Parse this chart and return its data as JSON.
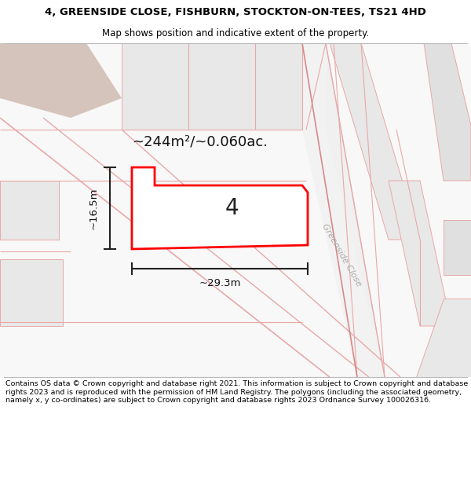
{
  "title_line1": "4, GREENSIDE CLOSE, FISHBURN, STOCKTON-ON-TEES, TS21 4HD",
  "title_line2": "Map shows position and indicative extent of the property.",
  "footer_text": "Contains OS data © Crown copyright and database right 2021. This information is subject to Crown copyright and database rights 2023 and is reproduced with the permission of HM Land Registry. The polygons (including the associated geometry, namely x, y co-ordinates) are subject to Crown copyright and database rights 2023 Ordnance Survey 100026316.",
  "area_label": "~244m²/~0.060ac.",
  "width_label": "~29.3m",
  "height_label": "~16.5m",
  "plot_number": "4",
  "road_label": "Greenside Close",
  "bg_color": "#ffffff",
  "plot_edge_color": "#ff0000",
  "plot_edge_width": 2.0,
  "dim_color": "#222222",
  "gray_block": "#e8e8e8",
  "gray_block2": "#e0e0e0",
  "pink_line": "#e8a8a8",
  "pink_line_dark": "#d88888",
  "tan_fill": "#d4c4bc",
  "road_fill": "#efefef",
  "title_fontsize": 9.5,
  "subtitle_fontsize": 8.5,
  "footer_fontsize": 6.8,
  "area_fontsize": 13,
  "dim_fontsize": 9.5,
  "plot_num_fontsize": 20,
  "road_label_fontsize": 8
}
